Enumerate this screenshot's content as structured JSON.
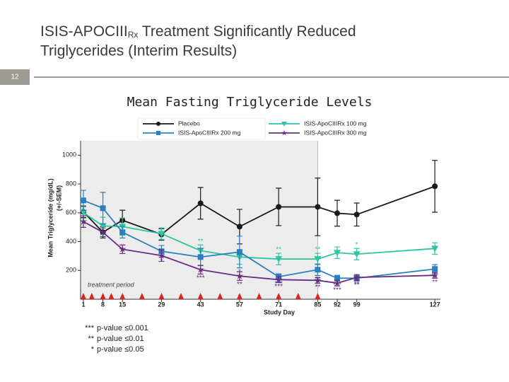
{
  "slide": {
    "title_before": "ISIS-APOCIII",
    "title_sub": "Rx",
    "title_after": " Treatment Significantly Reduced",
    "title_line2": "Triglycerides (Interim Results)",
    "number": "12"
  },
  "chart_data": {
    "type": "line",
    "title": "Mean Fasting Triglyceride Levels",
    "x_label": "Study Day",
    "y_label": "Mean Triglyceride (mg/dL)",
    "y_label2": "(+/-SEM)",
    "x": [
      1,
      8,
      15,
      29,
      43,
      57,
      71,
      85,
      92,
      99,
      127
    ],
    "xlim": [
      0,
      129
    ],
    "xticks": [
      1,
      8,
      15,
      29,
      43,
      57,
      71,
      85,
      92,
      99,
      127
    ],
    "ylim": [
      0,
      1100
    ],
    "yticks": [
      200,
      400,
      600,
      800,
      1000
    ],
    "treatment_period": {
      "label": "treatment period",
      "end": 85
    },
    "dosing_days": [
      1,
      4,
      8,
      11,
      15,
      22,
      29,
      36,
      43,
      50,
      57,
      64,
      71,
      78,
      85
    ],
    "dosing_color": "#e0241b",
    "series": [
      {
        "name": "Placebo",
        "color": "#1a1a1a",
        "marker": "circle",
        "values": [
          607,
          465,
          548,
          450,
          666,
          504,
          641,
          641,
          597,
          588,
          784
        ],
        "errors": [
          40,
          40,
          70,
          40,
          110,
          120,
          130,
          200,
          90,
          80,
          180
        ],
        "significance": [
          null,
          null,
          null,
          null,
          null,
          null,
          null,
          null,
          null,
          null,
          null
        ]
      },
      {
        "name": "ISIS-ApoCIIIRx 100 mg",
        "color": "#2fc4a4",
        "marker": "triangle-down",
        "values": [
          602,
          509,
          504,
          455,
          337,
          293,
          279,
          279,
          323,
          313,
          352
        ],
        "errors": [
          40,
          60,
          60,
          40,
          40,
          50,
          40,
          40,
          40,
          40,
          40
        ],
        "significance": [
          null,
          null,
          null,
          null,
          "**",
          null,
          "**",
          "**",
          null,
          "*",
          null
        ]
      },
      {
        "name": "ISIS-ApoCIIIRx 200 mg",
        "color": "#2b7fc0",
        "marker": "square",
        "values": [
          686,
          632,
          465,
          333,
          293,
          328,
          156,
          205,
          146,
          146,
          210
        ],
        "errors": [
          70,
          110,
          40,
          40,
          60,
          110,
          20,
          40,
          20,
          20,
          30
        ],
        "significance": [
          null,
          null,
          null,
          "*",
          null,
          "*",
          "***",
          "**",
          "***",
          "**",
          "**"
        ]
      },
      {
        "name": "ISIS-ApoCIIIRx 300 mg",
        "color": "#6a2c7e",
        "marker": "star",
        "values": [
          539,
          465,
          347,
          303,
          205,
          161,
          136,
          131,
          112,
          151,
          166
        ],
        "errors": [
          40,
          30,
          30,
          40,
          30,
          30,
          20,
          20,
          20,
          20,
          20
        ],
        "significance": [
          null,
          null,
          null,
          null,
          "***",
          "**",
          "***",
          "**",
          "***",
          "**",
          "**"
        ]
      }
    ],
    "footnotes": [
      {
        "symbol": "***",
        "text": "p-value ≤0.001"
      },
      {
        "symbol": "**",
        "text": "p-value ≤0.01"
      },
      {
        "symbol": "*",
        "text": "p-value ≤0.05"
      }
    ]
  }
}
